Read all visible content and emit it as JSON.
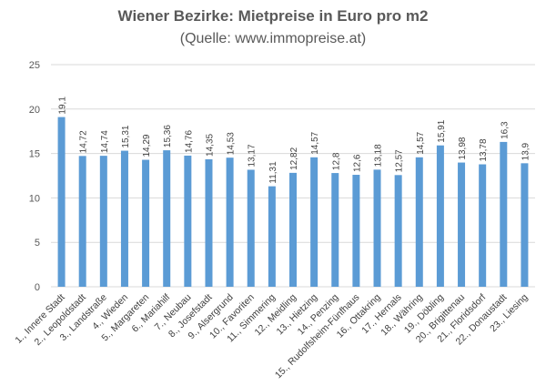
{
  "chart_data": {
    "type": "bar",
    "title": "Wiener Bezirke: Mietpreise in Euro pro m2",
    "subtitle": "(Quelle: www.immopreise.at)",
    "xlabel": "",
    "ylabel": "",
    "ylim": [
      0,
      25
    ],
    "yticks": [
      0,
      5,
      10,
      15,
      20,
      25
    ],
    "grid": true,
    "bar_color": "#5b9bd5",
    "categories": [
      "1., Innere Stadt",
      "2., Leopoldstadt",
      "3., Landstraße",
      "4., Wieden",
      "5., Margareten",
      "6., Mariahilf",
      "7., Neubau",
      "8., Josefstadt",
      "9., Alsergrund",
      "10., Favoriten",
      "11., Simmering",
      "12., Meidling",
      "13., Hietzing",
      "14., Penzing",
      "15., Rudolfsheim-Fünfhaus",
      "16., Ottakring",
      "17., Hernals",
      "18., Währing",
      "19., Döbling",
      "20., Brigittenau",
      "21., Floridsdorf",
      "22., Donaustadt",
      "23., Liesing"
    ],
    "values": [
      19.1,
      14.72,
      14.74,
      15.31,
      14.29,
      15.36,
      14.76,
      14.35,
      14.53,
      13.17,
      11.31,
      12.82,
      14.57,
      12.8,
      12.6,
      13.18,
      12.57,
      14.57,
      15.91,
      13.98,
      13.78,
      16.3,
      13.9
    ],
    "value_labels": [
      "19,1",
      "14,72",
      "14,74",
      "15,31",
      "14,29",
      "15,36",
      "14,76",
      "14,35",
      "14,53",
      "13,17",
      "11,31",
      "12,82",
      "14,57",
      "12,8",
      "12,6",
      "13,18",
      "12,57",
      "14,57",
      "15,91",
      "13,98",
      "13,78",
      "16,3",
      "13,9"
    ]
  }
}
